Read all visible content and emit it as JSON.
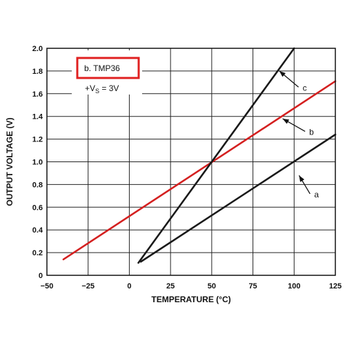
{
  "chart_data": {
    "type": "line",
    "xlabel": "TEMPERATURE (°C)",
    "ylabel": "OUTPUT VOLTAGE (V)",
    "xlim": [
      -50,
      125
    ],
    "ylim": [
      0,
      2.0
    ],
    "x_ticks": [
      -50,
      -25,
      0,
      25,
      50,
      75,
      100,
      125
    ],
    "y_ticks": [
      0,
      0.2,
      0.4,
      0.6,
      0.8,
      1.0,
      1.2,
      1.4,
      1.6,
      1.8,
      2.0
    ],
    "x_tick_labels": [
      "−50",
      "−25",
      "0",
      "25",
      "50",
      "75",
      "100",
      "125"
    ],
    "y_tick_labels": [
      "0",
      "0.2",
      "0.4",
      "0.6",
      "0.8",
      "1.0",
      "1.2",
      "1.4",
      "1.6",
      "1.8",
      "2.0"
    ],
    "grid": true,
    "legend_position": "top-left",
    "legend": {
      "highlighted": "b.  TMP36",
      "supply": "+V",
      "supply_sub": "S",
      "supply_value": " = 3V"
    },
    "series": [
      {
        "name": "a",
        "color": "#1a1a1a",
        "x": [
          7,
          125
        ],
        "y": [
          0.12,
          1.24
        ]
      },
      {
        "name": "b",
        "color": "#d42020",
        "x": [
          -40,
          125
        ],
        "y": [
          0.14,
          1.71
        ]
      },
      {
        "name": "c",
        "color": "#1a1a1a",
        "x": [
          5.5,
          100
        ],
        "y": [
          0.11,
          2.0
        ]
      }
    ],
    "annotations": [
      {
        "text": "a",
        "series": "a",
        "x": 103,
        "y": 0.88,
        "label_x": 113,
        "label_y": 0.73
      },
      {
        "text": "b",
        "series": "b",
        "x": 93,
        "y": 1.38,
        "label_x": 110,
        "label_y": 1.28
      },
      {
        "text": "c",
        "series": "c",
        "x": 91,
        "y": 1.8,
        "label_x": 106,
        "label_y": 1.67
      }
    ]
  }
}
